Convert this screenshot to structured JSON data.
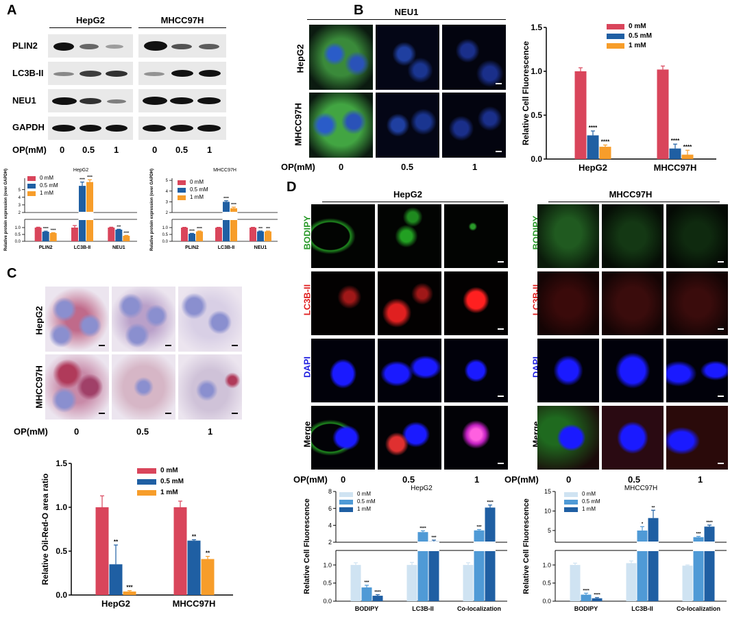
{
  "panels": {
    "A": "A",
    "B": "B",
    "C": "C",
    "D": "D"
  },
  "colors": {
    "red": "#d9455b",
    "blue": "#1f5fa3",
    "orange": "#f79d2a",
    "light1": "#cfe3f2",
    "light2": "#4f9ad6",
    "light3": "#1f5fa3"
  },
  "blot": {
    "cell_lines": [
      "HepG2",
      "MHCC97H"
    ],
    "proteins": [
      "PLIN2",
      "LC3B-II",
      "NEU1",
      "GAPDH"
    ],
    "op_label": "OP(mM)",
    "op_values": [
      "0",
      "0.5",
      "1",
      "0",
      "0.5",
      "1"
    ]
  },
  "panelB": {
    "title": "NEU1",
    "rows": [
      "HepG2",
      "MHCC97H"
    ],
    "op_label": "OP(mM)",
    "op_values": [
      "0",
      "0.5",
      "1"
    ]
  },
  "panelC": {
    "rows": [
      "HepG2",
      "MHCC97H"
    ],
    "op_label": "OP(mM)",
    "op_values": [
      "0",
      "0.5",
      "1"
    ]
  },
  "panelD": {
    "groups": [
      "HepG2",
      "MHCC97H"
    ],
    "rows": [
      "BODIPY",
      "LC3B-II",
      "DAPI",
      "Merge"
    ],
    "op_label": "OP(mM)",
    "op_values": [
      "0",
      "0.5",
      "1"
    ]
  },
  "chart_data": [
    {
      "id": "a-hepg2",
      "type": "bar",
      "title": "HepG2",
      "ylabel": "Relative protein expression (over GAPDH)",
      "categories": [
        "PLIN2",
        "LC3B-II",
        "NEU1"
      ],
      "legend": [
        "0 mM",
        "0.5 mM",
        "1 mM"
      ],
      "axis_break": [
        1.6,
        2
      ],
      "yticks": [
        "0.0",
        "0.5",
        "1.0",
        "2",
        "3",
        "4",
        "5"
      ],
      "series": [
        {
          "name": "0 mM",
          "values": [
            1.0,
            1.0,
            1.0
          ],
          "err": [
            0.03,
            0.15,
            0.03
          ],
          "stars": [
            "",
            "",
            ""
          ]
        },
        {
          "name": "0.5 mM",
          "values": [
            0.7,
            5.5,
            0.85
          ],
          "err": [
            0.04,
            0.5,
            0.03
          ],
          "stars": [
            "****",
            "****",
            "***"
          ]
        },
        {
          "name": "1 mM",
          "values": [
            0.6,
            6.0,
            0.4
          ],
          "err": [
            0.03,
            0.3,
            0.03
          ],
          "stars": [
            "****",
            "****",
            "****"
          ]
        }
      ]
    },
    {
      "id": "a-mhcc97h",
      "type": "bar",
      "title": "MHCC97H",
      "ylabel": "Relative protein expression (over GAPDH)",
      "categories": [
        "PLIN2",
        "LC3B-II",
        "NEU1"
      ],
      "legend": [
        "0 mM",
        "0.5 mM",
        "1 mM"
      ],
      "axis_break": [
        1.6,
        2
      ],
      "yticks": [
        "0.0",
        "0.5",
        "1.0",
        "2",
        "3",
        "4",
        "5"
      ],
      "series": [
        {
          "name": "0 mM",
          "values": [
            1.0,
            1.0,
            1.0
          ],
          "err": [
            0.02,
            0.02,
            0.02
          ],
          "stars": [
            "",
            "",
            ""
          ]
        },
        {
          "name": "0.5 mM",
          "values": [
            0.55,
            3.0,
            0.72
          ],
          "err": [
            0.03,
            0.1,
            0.03
          ],
          "stars": [
            "****",
            "****",
            "***"
          ]
        },
        {
          "name": "1 mM",
          "values": [
            0.72,
            2.4,
            0.72
          ],
          "err": [
            0.03,
            0.1,
            0.03
          ],
          "stars": [
            "****",
            "****",
            "***"
          ]
        }
      ]
    },
    {
      "id": "b-fluor",
      "type": "bar",
      "title": "",
      "ylabel": "Relative Cell Fluorescence",
      "categories": [
        "HepG2",
        "MHCC97H"
      ],
      "legend": [
        "0 mM",
        "0.5 mM",
        "1 mM"
      ],
      "ylim": [
        0,
        1.5
      ],
      "yticks": [
        "0.0",
        "0.5",
        "1.0",
        "1.5"
      ],
      "series": [
        {
          "name": "0 mM",
          "values": [
            1.0,
            1.02
          ],
          "err": [
            0.04,
            0.04
          ],
          "stars": [
            "",
            ""
          ]
        },
        {
          "name": "0.5 mM",
          "values": [
            0.27,
            0.12
          ],
          "err": [
            0.05,
            0.05
          ],
          "stars": [
            "****",
            "****"
          ]
        },
        {
          "name": "1 mM",
          "values": [
            0.14,
            0.05
          ],
          "err": [
            0.02,
            0.05
          ],
          "stars": [
            "****",
            "****"
          ]
        }
      ]
    },
    {
      "id": "c-oil",
      "type": "bar",
      "title": "",
      "ylabel": "Relative Oil-Red-O area ratio",
      "categories": [
        "HepG2",
        "MHCC97H"
      ],
      "legend": [
        "0 mM",
        "0.5 mM",
        "1 mM"
      ],
      "ylim": [
        0,
        1.5
      ],
      "yticks": [
        "0.0",
        "0.5",
        "1.0",
        "1.5"
      ],
      "series": [
        {
          "name": "0 mM",
          "values": [
            1.0,
            1.0
          ],
          "err": [
            0.13,
            0.07
          ],
          "stars": [
            "",
            ""
          ]
        },
        {
          "name": "0.5 mM",
          "values": [
            0.35,
            0.62
          ],
          "err": [
            0.22,
            0.01
          ],
          "stars": [
            "**",
            "**"
          ]
        },
        {
          "name": "1 mM",
          "values": [
            0.04,
            0.41
          ],
          "err": [
            0.01,
            0.03
          ],
          "stars": [
            "***",
            "**"
          ]
        }
      ]
    },
    {
      "id": "d-hepg2",
      "type": "bar",
      "title": "HepG2",
      "ylabel": "Relative Cell Fluorescence",
      "categories": [
        "BODIPY",
        "LC3B-II",
        "Co-localization"
      ],
      "legend": [
        "0 mM",
        "0.5 mM",
        "1 mM"
      ],
      "axis_break": [
        1.4,
        2
      ],
      "yticks": [
        "0.0",
        "0.5",
        "1.0",
        "2",
        "4",
        "6",
        "8"
      ],
      "series": [
        {
          "name": "0 mM",
          "values": [
            1.0,
            1.0,
            1.0
          ],
          "err": [
            0.06,
            0.07,
            0.06
          ],
          "stars": [
            "",
            "",
            ""
          ]
        },
        {
          "name": "0.5 mM",
          "values": [
            0.38,
            3.2,
            3.4
          ],
          "err": [
            0.06,
            0.15,
            0.1
          ],
          "stars": [
            "***",
            "****",
            "***"
          ]
        },
        {
          "name": "1 mM",
          "values": [
            0.15,
            2.1,
            6.1
          ],
          "err": [
            0.03,
            0.15,
            0.3
          ],
          "stars": [
            "****",
            "***",
            "****"
          ]
        }
      ]
    },
    {
      "id": "d-mhcc97h",
      "type": "bar",
      "title": "MHCC97H",
      "ylabel": "Relative Cell Fluorescence",
      "categories": [
        "BODIPY",
        "LC3B-II",
        "Co-localization"
      ],
      "legend": [
        "0 mM",
        "0.5 mM",
        "1 mM"
      ],
      "axis_break": [
        1.4,
        2
      ],
      "yticks": [
        "0.0",
        "0.5",
        "1.0",
        "5",
        "10",
        "15"
      ],
      "series": [
        {
          "name": "0 mM",
          "values": [
            1.0,
            1.05,
            0.98
          ],
          "err": [
            0.05,
            0.06,
            0.02
          ],
          "stars": [
            "",
            "",
            ""
          ]
        },
        {
          "name": "0.5 mM",
          "values": [
            0.18,
            5.0,
            3.3
          ],
          "err": [
            0.04,
            1.0,
            0.2
          ],
          "stars": [
            "****",
            "*",
            "***"
          ]
        },
        {
          "name": "1 mM",
          "values": [
            0.08,
            8.2,
            6.0
          ],
          "err": [
            0.02,
            2.0,
            0.4
          ],
          "stars": [
            "****",
            "**",
            "****"
          ]
        }
      ]
    }
  ]
}
